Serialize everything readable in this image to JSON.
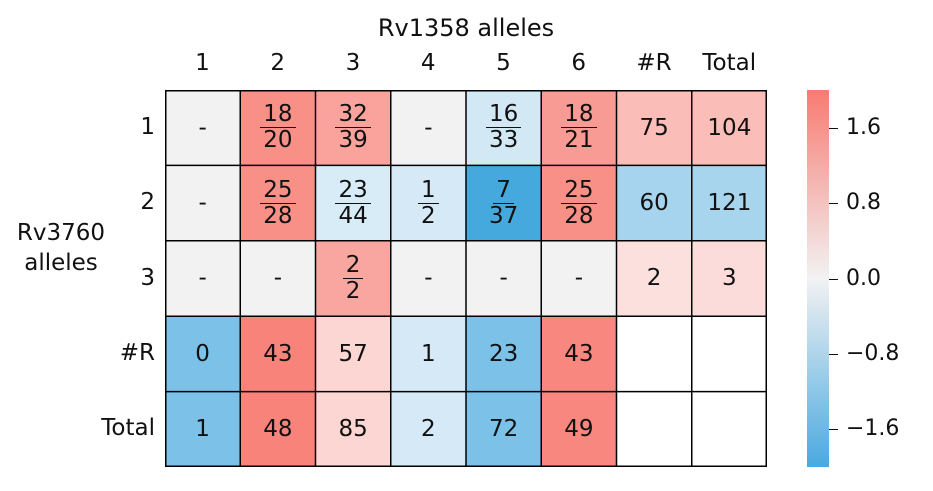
{
  "chart_data": {
    "type": "heatmap",
    "title": "Rv1358 alleles",
    "ylabel": "Rv3760 alleles",
    "columns": [
      "1",
      "2",
      "3",
      "4",
      "5",
      "6",
      "#R",
      "Total"
    ],
    "rows": [
      "1",
      "2",
      "3",
      "#R",
      "Total"
    ],
    "cells": [
      [
        "-",
        "18/20",
        "32/39",
        "-",
        "16/33",
        "18/21",
        "75",
        "104"
      ],
      [
        "-",
        "25/28",
        "23/44",
        "1/2",
        "7/37",
        "25/28",
        "60",
        "121"
      ],
      [
        "-",
        "-",
        "2/2",
        "-",
        "-",
        "-",
        "2",
        "3"
      ],
      [
        "0",
        "43",
        "57",
        "1",
        "23",
        "43",
        "",
        ""
      ],
      [
        "1",
        "48",
        "85",
        "2",
        "72",
        "49",
        "",
        ""
      ]
    ],
    "colors": [
      [
        "#f2f2f2",
        "#f89088",
        "#f9a39c",
        "#f2f2f2",
        "#d2e8f5",
        "#f89b94",
        "#fbbdb8",
        "#fbbdb8"
      ],
      [
        "#f2f2f2",
        "#f89088",
        "#d8ecf7",
        "#d5eaf6",
        "#46a9dd",
        "#f89088",
        "#a6d4ee",
        "#a8d5ee"
      ],
      [
        "#f2f2f2",
        "#f2f2f2",
        "#f9a6a0",
        "#f2f2f2",
        "#f2f2f2",
        "#f2f2f2",
        "#fce0de",
        "#fcdcda"
      ],
      [
        "#7cc1e7",
        "#f7837b",
        "#fcd6d3",
        "#d5eaf6",
        "#7cc1e7",
        "#f7877f",
        "#ffffff",
        "#ffffff"
      ],
      [
        "#7cc1e7",
        "#f7837b",
        "#fcd6d3",
        "#d5eaf6",
        "#7cc1e7",
        "#f7877f",
        "#ffffff",
        "#ffffff"
      ]
    ],
    "colorbar": {
      "range": [
        -2.0,
        2.0
      ],
      "ticks": [
        1.6,
        0.8,
        0.0,
        -0.8,
        -1.6
      ],
      "tick_labels": [
        "1.6",
        "0.8",
        "0.0",
        "−0.8",
        "−1.6"
      ],
      "colors": [
        "#4aa9e0",
        "#f2f2f2",
        "#f77b72"
      ]
    }
  }
}
